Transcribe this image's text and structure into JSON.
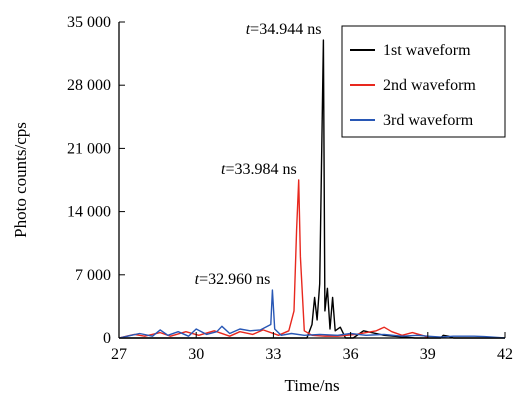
{
  "chart_data": {
    "type": "line",
    "xlabel": "Time/ns",
    "ylabel": "Photo counts/cps",
    "xlim": [
      27,
      42
    ],
    "ylim": [
      0,
      35000
    ],
    "xticks": [
      27,
      30,
      33,
      36,
      39,
      42
    ],
    "xtick_labels": [
      "27",
      "30",
      "33",
      "36",
      "39",
      "42"
    ],
    "yticks": [
      0,
      7000,
      14000,
      21000,
      28000,
      35000
    ],
    "ytick_labels": [
      "0",
      "7 000",
      "14 000",
      "21 000",
      "28 000",
      "35 000"
    ],
    "grid": false,
    "legend_position": "top-right",
    "series": [
      {
        "name": "1st waveform",
        "color": "#000000",
        "x": [
          27.0,
          30.2,
          31.5,
          33.6,
          34.3,
          34.5,
          34.6,
          34.7,
          34.8,
          34.944,
          35.0,
          35.1,
          35.2,
          35.3,
          35.4,
          35.6,
          35.8,
          36.1,
          36.5,
          37.3,
          38.5,
          39.5,
          39.6,
          39.8,
          40.0,
          40.5,
          41.0,
          42.0
        ],
        "y": [
          0,
          0,
          0,
          0,
          0,
          1500,
          4500,
          2000,
          6000,
          33000,
          3000,
          5500,
          1000,
          4500,
          800,
          1200,
          0,
          0,
          800,
          300,
          0,
          0,
          300,
          200,
          0,
          0,
          0,
          0
        ]
      },
      {
        "name": "2nd waveform",
        "color": "#e8281e",
        "x": [
          27.0,
          27.6,
          28.0,
          28.6,
          29.0,
          29.6,
          30.1,
          30.7,
          31.3,
          31.7,
          32.2,
          32.6,
          33.2,
          33.6,
          33.8,
          33.9,
          33.984,
          34.05,
          34.2,
          34.5,
          35.0,
          35.5,
          36.2,
          37.0,
          37.3,
          37.6,
          38.0,
          38.4,
          38.9,
          39.0
        ],
        "y": [
          0,
          400,
          200,
          600,
          200,
          700,
          300,
          800,
          200,
          700,
          400,
          900,
          300,
          800,
          3000,
          12000,
          17500,
          9000,
          800,
          300,
          200,
          200,
          400,
          800,
          1200,
          700,
          300,
          600,
          200,
          0
        ]
      },
      {
        "name": "3rd waveform",
        "color": "#2857b5",
        "x": [
          27.0,
          27.8,
          28.3,
          28.6,
          28.9,
          29.3,
          29.7,
          30.0,
          30.4,
          30.8,
          31.0,
          31.3,
          31.7,
          32.1,
          32.5,
          32.9,
          32.96,
          33.05,
          33.3,
          33.7,
          34.2,
          34.8,
          35.5,
          36.0,
          36.6,
          37.3,
          38.0,
          38.6,
          39.0,
          39.5,
          40.0,
          40.8,
          41.2,
          42.0
        ],
        "y": [
          0,
          500,
          200,
          900,
          300,
          700,
          200,
          1000,
          400,
          700,
          1300,
          500,
          1000,
          800,
          900,
          1500,
          5300,
          1000,
          300,
          500,
          300,
          400,
          300,
          500,
          300,
          400,
          200,
          300,
          200,
          100,
          200,
          200,
          150,
          0
        ]
      }
    ],
    "annotations": [
      {
        "text": "t=34.944 ns",
        "italic": "t",
        "rest": "=34.944 ns",
        "x": 34.944,
        "y": 33000
      },
      {
        "text": "t=33.984 ns",
        "italic": "t",
        "rest": "=33.984 ns",
        "x": 33.984,
        "y": 17500
      },
      {
        "text": "t=32.960 ns",
        "italic": "t",
        "rest": "=32.960 ns",
        "x": 32.96,
        "y": 5300
      }
    ]
  }
}
